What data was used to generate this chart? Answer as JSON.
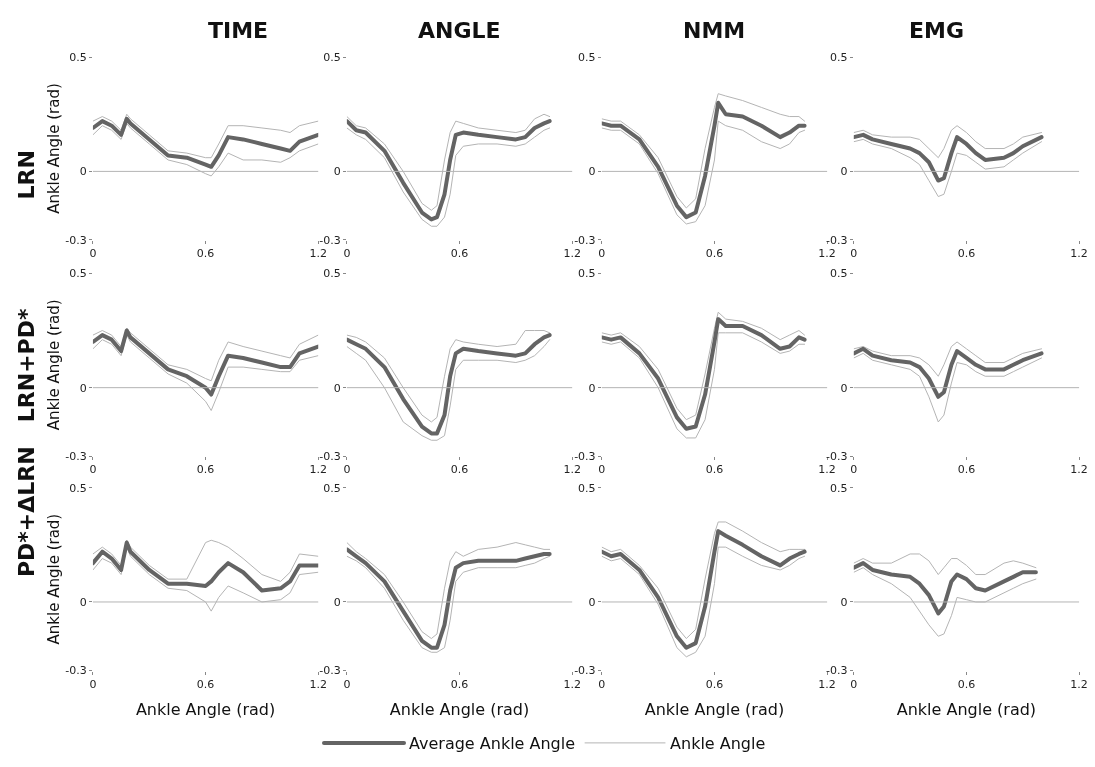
{
  "chart_data": [
    {
      "type": "line",
      "title": "TIME",
      "ylabel": "Ankle Angle (rad)",
      "annotations": [
        "LRN"
      ],
      "legend": "bottom",
      "xlim": [
        0,
        1.2
      ],
      "ylim": [
        -0.3,
        0.5
      ],
      "xticks": [
        0,
        0.6,
        1.2
      ],
      "yticks": [
        -0.3,
        0,
        0.5
      ],
      "ref_lines": [
        {
          "axis": "y",
          "value": 0,
          "color": "#b4b4b4"
        }
      ],
      "x": [
        0,
        0.05,
        0.1,
        0.15,
        0.18,
        0.2,
        0.3,
        0.4,
        0.5,
        0.6,
        0.63,
        0.67,
        0.72,
        0.8,
        0.9,
        1.0,
        1.05,
        1.1,
        1.2
      ],
      "series": [
        {
          "name": "Ankle Angle",
          "color": "#b4b4b4",
          "values": [
            0.22,
            0.24,
            0.22,
            0.18,
            0.25,
            0.23,
            0.16,
            0.09,
            0.08,
            0.06,
            0.06,
            0.12,
            0.2,
            0.2,
            0.19,
            0.18,
            0.17,
            0.2,
            0.22
          ]
        },
        {
          "color": "#b4b4b4",
          "values": [
            0.16,
            0.2,
            0.18,
            0.14,
            0.21,
            0.19,
            0.12,
            0.05,
            0.03,
            -0.01,
            -0.02,
            0.02,
            0.08,
            0.05,
            0.05,
            0.04,
            0.06,
            0.09,
            0.12
          ]
        },
        {
          "name": "Average Ankle Angle",
          "color": "#646464",
          "values": [
            0.19,
            0.22,
            0.2,
            0.16,
            0.23,
            0.21,
            0.14,
            0.07,
            0.06,
            0.03,
            0.02,
            0.07,
            0.15,
            0.14,
            0.12,
            0.1,
            0.09,
            0.13,
            0.16
          ]
        }
      ]
    },
    {
      "type": "line",
      "title": "ANGLE",
      "xlim": [
        0,
        1.2
      ],
      "ylim": [
        -0.3,
        0.5
      ],
      "xticks": [
        0,
        0.6,
        1.2
      ],
      "yticks": [
        -0.3,
        0,
        0.5
      ],
      "ref_lines": [
        {
          "axis": "y",
          "value": 0,
          "color": "#b4b4b4"
        }
      ],
      "x": [
        0,
        0.05,
        0.1,
        0.2,
        0.3,
        0.4,
        0.45,
        0.48,
        0.52,
        0.55,
        0.58,
        0.62,
        0.7,
        0.8,
        0.9,
        0.95,
        1.0,
        1.05,
        1.08
      ],
      "series": [
        {
          "color": "#b4b4b4",
          "values": [
            0.24,
            0.2,
            0.19,
            0.12,
            0.0,
            -0.14,
            -0.17,
            -0.15,
            0.05,
            0.17,
            0.22,
            0.21,
            0.19,
            0.18,
            0.17,
            0.18,
            0.23,
            0.25,
            0.24
          ]
        },
        {
          "color": "#b4b4b4",
          "values": [
            0.19,
            0.16,
            0.14,
            0.06,
            -0.09,
            -0.21,
            -0.24,
            -0.24,
            -0.2,
            -0.1,
            0.07,
            0.11,
            0.12,
            0.12,
            0.11,
            0.12,
            0.15,
            0.18,
            0.19
          ]
        },
        {
          "color": "#646464",
          "values": [
            0.22,
            0.18,
            0.17,
            0.09,
            -0.05,
            -0.18,
            -0.21,
            -0.2,
            -0.1,
            0.05,
            0.16,
            0.17,
            0.16,
            0.15,
            0.14,
            0.15,
            0.19,
            0.21,
            0.22
          ]
        }
      ]
    },
    {
      "type": "line",
      "title": "NMM",
      "xlim": [
        0,
        1.2
      ],
      "ylim": [
        -0.3,
        0.5
      ],
      "xticks": [
        0,
        0.6,
        1.2
      ],
      "yticks": [
        -0.3,
        0,
        0.5
      ],
      "ref_lines": [
        {
          "axis": "y",
          "value": 0,
          "color": "#b4b4b4"
        }
      ],
      "x": [
        0,
        0.05,
        0.1,
        0.2,
        0.3,
        0.4,
        0.45,
        0.5,
        0.55,
        0.6,
        0.62,
        0.66,
        0.75,
        0.85,
        0.95,
        1.0,
        1.05,
        1.08
      ],
      "series": [
        {
          "color": "#b4b4b4",
          "values": [
            0.23,
            0.22,
            0.22,
            0.16,
            0.06,
            -0.11,
            -0.16,
            -0.12,
            0.1,
            0.28,
            0.34,
            0.33,
            0.31,
            0.28,
            0.25,
            0.24,
            0.24,
            0.22
          ]
        },
        {
          "color": "#b4b4b4",
          "values": [
            0.19,
            0.18,
            0.18,
            0.12,
            -0.01,
            -0.19,
            -0.23,
            -0.22,
            -0.15,
            0.05,
            0.22,
            0.2,
            0.18,
            0.13,
            0.1,
            0.12,
            0.17,
            0.18
          ]
        },
        {
          "color": "#646464",
          "values": [
            0.21,
            0.2,
            0.2,
            0.14,
            0.02,
            -0.15,
            -0.2,
            -0.18,
            -0.02,
            0.2,
            0.3,
            0.25,
            0.24,
            0.2,
            0.15,
            0.17,
            0.2,
            0.2
          ]
        }
      ]
    },
    {
      "type": "line",
      "title": "EMG",
      "xlim": [
        0,
        1.2
      ],
      "ylim": [
        -0.3,
        0.5
      ],
      "xticks": [
        0,
        0.6,
        1.2
      ],
      "yticks": [
        -0.3,
        0,
        0.5
      ],
      "ref_lines": [
        {
          "axis": "y",
          "value": 0,
          "color": "#b4b4b4"
        }
      ],
      "x": [
        0,
        0.05,
        0.1,
        0.2,
        0.3,
        0.35,
        0.4,
        0.45,
        0.48,
        0.52,
        0.55,
        0.6,
        0.65,
        0.7,
        0.8,
        0.85,
        0.9,
        1.0
      ],
      "series": [
        {
          "color": "#b4b4b4",
          "values": [
            0.17,
            0.18,
            0.16,
            0.15,
            0.15,
            0.14,
            0.1,
            0.06,
            0.1,
            0.18,
            0.2,
            0.17,
            0.13,
            0.1,
            0.1,
            0.12,
            0.15,
            0.17
          ]
        },
        {
          "color": "#b4b4b4",
          "values": [
            0.13,
            0.14,
            0.12,
            0.1,
            0.06,
            0.03,
            -0.04,
            -0.11,
            -0.1,
            0.0,
            0.08,
            0.07,
            0.04,
            0.01,
            0.02,
            0.05,
            0.08,
            0.13
          ]
        },
        {
          "color": "#646464",
          "values": [
            0.15,
            0.16,
            0.14,
            0.12,
            0.1,
            0.08,
            0.04,
            -0.04,
            -0.03,
            0.08,
            0.15,
            0.12,
            0.08,
            0.05,
            0.06,
            0.08,
            0.11,
            0.15
          ]
        }
      ]
    },
    {
      "type": "line",
      "ylabel": "Ankle Angle (rad)",
      "annotations": [
        "LRN+PD*"
      ],
      "xlim": [
        0,
        1.2
      ],
      "ylim": [
        -0.3,
        0.5
      ],
      "xticks": [
        0,
        0.6,
        1.2
      ],
      "yticks": [
        -0.3,
        0,
        0.5
      ],
      "ref_lines": [
        {
          "axis": "y",
          "value": 0,
          "color": "#b4b4b4"
        }
      ],
      "x": [
        0,
        0.05,
        0.1,
        0.15,
        0.18,
        0.2,
        0.3,
        0.4,
        0.5,
        0.6,
        0.63,
        0.67,
        0.72,
        0.8,
        0.9,
        1.0,
        1.05,
        1.1,
        1.2
      ],
      "series": [
        {
          "color": "#b4b4b4",
          "values": [
            0.23,
            0.25,
            0.23,
            0.18,
            0.26,
            0.24,
            0.17,
            0.1,
            0.08,
            0.04,
            0.03,
            0.12,
            0.2,
            0.18,
            0.16,
            0.14,
            0.13,
            0.19,
            0.23
          ]
        },
        {
          "color": "#b4b4b4",
          "values": [
            0.17,
            0.21,
            0.19,
            0.14,
            0.23,
            0.2,
            0.13,
            0.06,
            0.02,
            -0.06,
            -0.1,
            -0.02,
            0.09,
            0.09,
            0.08,
            0.07,
            0.07,
            0.12,
            0.14
          ]
        },
        {
          "color": "#646464",
          "values": [
            0.2,
            0.23,
            0.21,
            0.16,
            0.25,
            0.22,
            0.15,
            0.08,
            0.05,
            0.0,
            -0.03,
            0.05,
            0.14,
            0.13,
            0.11,
            0.09,
            0.09,
            0.15,
            0.18
          ]
        }
      ]
    },
    {
      "type": "line",
      "xlim": [
        0,
        1.2
      ],
      "ylim": [
        -0.3,
        0.5
      ],
      "xticks": [
        0,
        0.6,
        1.2
      ],
      "yticks": [
        -0.3,
        0,
        0.5
      ],
      "ref_lines": [
        {
          "axis": "y",
          "value": 0,
          "color": "#b4b4b4"
        }
      ],
      "x": [
        0,
        0.05,
        0.1,
        0.2,
        0.3,
        0.4,
        0.45,
        0.48,
        0.52,
        0.55,
        0.58,
        0.62,
        0.7,
        0.8,
        0.9,
        0.95,
        1.0,
        1.05,
        1.08
      ],
      "series": [
        {
          "color": "#b4b4b4",
          "values": [
            0.23,
            0.22,
            0.2,
            0.13,
            0.0,
            -0.12,
            -0.15,
            -0.13,
            0.05,
            0.17,
            0.21,
            0.2,
            0.19,
            0.18,
            0.19,
            0.25,
            0.25,
            0.25,
            0.24
          ]
        },
        {
          "color": "#b4b4b4",
          "values": [
            0.18,
            0.15,
            0.12,
            0.0,
            -0.15,
            -0.21,
            -0.23,
            -0.23,
            -0.21,
            -0.08,
            0.08,
            0.12,
            0.12,
            0.12,
            0.11,
            0.12,
            0.14,
            0.18,
            0.21
          ]
        },
        {
          "color": "#646464",
          "values": [
            0.21,
            0.19,
            0.17,
            0.09,
            -0.05,
            -0.17,
            -0.2,
            -0.2,
            -0.12,
            0.05,
            0.15,
            0.17,
            0.16,
            0.15,
            0.14,
            0.15,
            0.19,
            0.22,
            0.23
          ]
        }
      ]
    },
    {
      "type": "line",
      "xlim": [
        0,
        1.2
      ],
      "ylim": [
        -0.3,
        0.5
      ],
      "xticks": [
        0,
        0.6,
        1.2
      ],
      "yticks": [
        -0.3,
        0,
        0.5
      ],
      "ref_lines": [
        {
          "axis": "y",
          "value": 0,
          "color": "#b4b4b4"
        }
      ],
      "x": [
        0,
        0.05,
        0.1,
        0.2,
        0.3,
        0.4,
        0.45,
        0.5,
        0.55,
        0.6,
        0.62,
        0.66,
        0.75,
        0.85,
        0.95,
        1.0,
        1.05,
        1.08
      ],
      "series": [
        {
          "color": "#b4b4b4",
          "values": [
            0.24,
            0.23,
            0.24,
            0.18,
            0.08,
            -0.09,
            -0.14,
            -0.12,
            0.06,
            0.26,
            0.33,
            0.3,
            0.29,
            0.26,
            0.21,
            0.23,
            0.25,
            0.23
          ]
        },
        {
          "color": "#b4b4b4",
          "values": [
            0.2,
            0.19,
            0.2,
            0.13,
            0.0,
            -0.18,
            -0.22,
            -0.22,
            -0.14,
            0.08,
            0.24,
            0.24,
            0.24,
            0.2,
            0.15,
            0.16,
            0.19,
            0.19
          ]
        },
        {
          "color": "#646464",
          "values": [
            0.22,
            0.21,
            0.22,
            0.15,
            0.04,
            -0.13,
            -0.18,
            -0.17,
            -0.03,
            0.2,
            0.3,
            0.27,
            0.27,
            0.23,
            0.17,
            0.18,
            0.22,
            0.21
          ]
        }
      ]
    },
    {
      "type": "line",
      "xlim": [
        0,
        1.2
      ],
      "ylim": [
        -0.3,
        0.5
      ],
      "xticks": [
        0,
        0.6,
        1.2
      ],
      "yticks": [
        -0.3,
        0,
        0.5
      ],
      "ref_lines": [
        {
          "axis": "y",
          "value": 0,
          "color": "#b4b4b4"
        }
      ],
      "x": [
        0,
        0.05,
        0.1,
        0.2,
        0.3,
        0.35,
        0.4,
        0.45,
        0.48,
        0.52,
        0.55,
        0.6,
        0.65,
        0.7,
        0.8,
        0.85,
        0.9,
        1.0
      ],
      "series": [
        {
          "color": "#b4b4b4",
          "values": [
            0.17,
            0.18,
            0.16,
            0.14,
            0.14,
            0.13,
            0.1,
            0.05,
            0.1,
            0.18,
            0.2,
            0.17,
            0.14,
            0.11,
            0.11,
            0.13,
            0.15,
            0.17
          ]
        },
        {
          "color": "#b4b4b4",
          "values": [
            0.13,
            0.15,
            0.12,
            0.1,
            0.08,
            0.05,
            -0.04,
            -0.15,
            -0.12,
            0.02,
            0.11,
            0.1,
            0.07,
            0.05,
            0.05,
            0.07,
            0.09,
            0.13
          ]
        },
        {
          "color": "#646464",
          "values": [
            0.15,
            0.17,
            0.14,
            0.12,
            0.11,
            0.09,
            0.04,
            -0.04,
            -0.02,
            0.1,
            0.16,
            0.13,
            0.1,
            0.08,
            0.08,
            0.1,
            0.12,
            0.15
          ]
        }
      ]
    },
    {
      "type": "line",
      "ylabel": "Ankle Angle (rad)",
      "xlabel": "Ankle Angle (rad)",
      "annotations": [
        "PD*+ΔLRN"
      ],
      "xlim": [
        0,
        1.2
      ],
      "ylim": [
        -0.3,
        0.5
      ],
      "xticks": [
        0,
        0.6,
        1.2
      ],
      "yticks": [
        -0.3,
        0,
        0.5
      ],
      "ref_lines": [
        {
          "axis": "y",
          "value": 0,
          "color": "#b4b4b4"
        }
      ],
      "x": [
        0,
        0.05,
        0.1,
        0.15,
        0.18,
        0.2,
        0.3,
        0.4,
        0.5,
        0.6,
        0.63,
        0.67,
        0.72,
        0.8,
        0.9,
        1.0,
        1.05,
        1.1,
        1.2
      ],
      "series": [
        {
          "color": "#b4b4b4",
          "values": [
            0.21,
            0.24,
            0.21,
            0.16,
            0.27,
            0.24,
            0.16,
            0.1,
            0.1,
            0.26,
            0.27,
            0.26,
            0.24,
            0.19,
            0.12,
            0.09,
            0.13,
            0.21,
            0.2
          ]
        },
        {
          "color": "#b4b4b4",
          "values": [
            0.14,
            0.19,
            0.17,
            0.12,
            0.24,
            0.2,
            0.12,
            0.06,
            0.05,
            0.0,
            -0.04,
            0.02,
            0.07,
            0.04,
            0.0,
            0.01,
            0.04,
            0.12,
            0.13
          ]
        },
        {
          "color": "#646464",
          "values": [
            0.17,
            0.22,
            0.19,
            0.14,
            0.26,
            0.22,
            0.14,
            0.08,
            0.08,
            0.07,
            0.09,
            0.13,
            0.17,
            0.13,
            0.05,
            0.06,
            0.09,
            0.16,
            0.16
          ]
        }
      ]
    },
    {
      "type": "line",
      "xlabel": "Ankle Angle (rad)",
      "xlim": [
        0,
        1.2
      ],
      "ylim": [
        -0.3,
        0.5
      ],
      "xticks": [
        0,
        0.6,
        1.2
      ],
      "yticks": [
        -0.3,
        0,
        0.5
      ],
      "ref_lines": [
        {
          "axis": "y",
          "value": 0,
          "color": "#b4b4b4"
        }
      ],
      "x": [
        0,
        0.05,
        0.1,
        0.2,
        0.3,
        0.4,
        0.45,
        0.48,
        0.52,
        0.55,
        0.58,
        0.62,
        0.7,
        0.8,
        0.9,
        0.95,
        1.0,
        1.05,
        1.08
      ],
      "series": [
        {
          "color": "#b4b4b4",
          "values": [
            0.26,
            0.22,
            0.19,
            0.12,
            0.0,
            -0.13,
            -0.16,
            -0.14,
            0.06,
            0.18,
            0.22,
            0.2,
            0.23,
            0.24,
            0.26,
            0.25,
            0.24,
            0.23,
            0.23
          ]
        },
        {
          "color": "#b4b4b4",
          "values": [
            0.2,
            0.18,
            0.15,
            0.06,
            -0.08,
            -0.2,
            -0.22,
            -0.22,
            -0.2,
            -0.08,
            0.09,
            0.13,
            0.15,
            0.15,
            0.15,
            0.16,
            0.17,
            0.19,
            0.2
          ]
        },
        {
          "color": "#646464",
          "values": [
            0.23,
            0.2,
            0.17,
            0.09,
            -0.04,
            -0.17,
            -0.2,
            -0.2,
            -0.1,
            0.05,
            0.15,
            0.17,
            0.18,
            0.18,
            0.18,
            0.19,
            0.2,
            0.21,
            0.21
          ]
        }
      ]
    },
    {
      "type": "line",
      "xlabel": "Ankle Angle (rad)",
      "xlim": [
        0,
        1.2
      ],
      "ylim": [
        -0.3,
        0.5
      ],
      "xticks": [
        0,
        0.6,
        1.2
      ],
      "yticks": [
        -0.3,
        0,
        0.5
      ],
      "ref_lines": [
        {
          "axis": "y",
          "value": 0,
          "color": "#b4b4b4"
        }
      ],
      "x": [
        0,
        0.05,
        0.1,
        0.2,
        0.3,
        0.4,
        0.45,
        0.5,
        0.55,
        0.6,
        0.62,
        0.66,
        0.75,
        0.85,
        0.95,
        1.0,
        1.05,
        1.08
      ],
      "series": [
        {
          "color": "#b4b4b4",
          "values": [
            0.24,
            0.22,
            0.23,
            0.16,
            0.06,
            -0.11,
            -0.16,
            -0.12,
            0.1,
            0.3,
            0.35,
            0.35,
            0.31,
            0.26,
            0.22,
            0.23,
            0.23,
            0.23
          ]
        },
        {
          "color": "#b4b4b4",
          "values": [
            0.2,
            0.18,
            0.19,
            0.12,
            -0.01,
            -0.2,
            -0.24,
            -0.22,
            -0.15,
            0.08,
            0.24,
            0.24,
            0.2,
            0.16,
            0.14,
            0.16,
            0.19,
            0.2
          ]
        },
        {
          "color": "#646464",
          "values": [
            0.22,
            0.2,
            0.21,
            0.14,
            0.02,
            -0.15,
            -0.2,
            -0.18,
            -0.02,
            0.22,
            0.31,
            0.29,
            0.25,
            0.2,
            0.16,
            0.19,
            0.21,
            0.22
          ]
        }
      ]
    },
    {
      "type": "line",
      "xlabel": "Ankle Angle (rad)",
      "xlim": [
        0,
        1.2
      ],
      "ylim": [
        -0.3,
        0.5
      ],
      "xticks": [
        0,
        0.6,
        1.2
      ],
      "yticks": [
        -0.3,
        0,
        0.5
      ],
      "ref_lines": [
        {
          "axis": "y",
          "value": 0,
          "color": "#b4b4b4"
        }
      ],
      "x": [
        0,
        0.05,
        0.1,
        0.2,
        0.3,
        0.35,
        0.4,
        0.45,
        0.48,
        0.52,
        0.55,
        0.6,
        0.65,
        0.7,
        0.8,
        0.85,
        0.9,
        0.97
      ],
      "series": [
        {
          "color": "#b4b4b4",
          "values": [
            0.17,
            0.19,
            0.17,
            0.17,
            0.21,
            0.21,
            0.18,
            0.12,
            0.15,
            0.19,
            0.19,
            0.16,
            0.12,
            0.12,
            0.17,
            0.18,
            0.17,
            0.15
          ]
        },
        {
          "color": "#b4b4b4",
          "values": [
            0.13,
            0.15,
            0.12,
            0.08,
            0.02,
            -0.04,
            -0.1,
            -0.15,
            -0.14,
            -0.06,
            0.02,
            0.01,
            0.0,
            0.0,
            0.04,
            0.06,
            0.08,
            0.1
          ]
        },
        {
          "color": "#646464",
          "values": [
            0.15,
            0.17,
            0.14,
            0.12,
            0.11,
            0.08,
            0.03,
            -0.05,
            -0.02,
            0.09,
            0.12,
            0.1,
            0.06,
            0.05,
            0.09,
            0.11,
            0.13,
            0.13
          ]
        }
      ]
    }
  ]
}
